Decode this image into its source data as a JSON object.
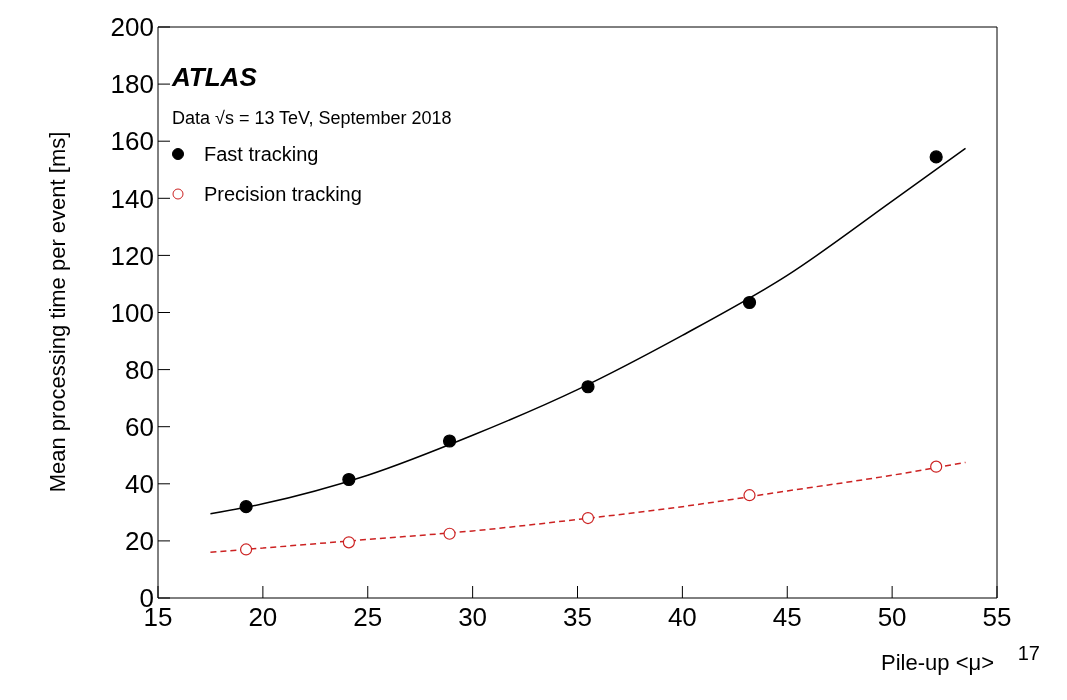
{
  "chart_data": {
    "type": "scatter",
    "xlabel": "Pile-up <μ>",
    "ylabel": "Mean processing time per event [ms]",
    "annotations": [
      "ATLAS",
      "Data √s = 13 TeV, September 2018",
      "17"
    ],
    "xlim": [
      15,
      55
    ],
    "xticks": [
      15,
      20,
      25,
      30,
      35,
      40,
      45,
      50,
      55
    ],
    "ylim": [
      0,
      200
    ],
    "yticks": [
      0,
      20,
      40,
      60,
      80,
      100,
      120,
      140,
      160,
      180,
      200
    ],
    "grid": false,
    "legend": "top left",
    "marker": "circle",
    "series": [
      {
        "name": "Fast tracking",
        "color": "#000000",
        "x": [
          19.2,
          24.1,
          28.9,
          35.5,
          43.2,
          52.1
        ],
        "values": [
          32,
          41.5,
          55,
          74,
          103.5,
          154.5
        ]
      },
      {
        "name": "Precision tracking",
        "color": "#cc2222",
        "x": [
          19.2,
          24.1,
          28.9,
          35.5,
          43.2,
          52.1
        ],
        "values": [
          17,
          19.5,
          22.5,
          28,
          36,
          46
        ]
      },
      {
        "type": "line",
        "color": "#000000",
        "line_style": "solid",
        "marker": "none",
        "x": [
          17.5,
          20,
          25,
          30,
          35,
          40,
          45,
          50,
          53.5
        ],
        "values": [
          29.5,
          33,
          43,
          57,
          73,
          92,
          113,
          139,
          157.5
        ]
      },
      {
        "type": "line",
        "color": "#cc2222",
        "line_style": "dashed",
        "marker": "none",
        "x": [
          17.5,
          20,
          25,
          30,
          35,
          40,
          45,
          50,
          53.5
        ],
        "values": [
          16,
          17.5,
          20.5,
          23.5,
          27.5,
          32,
          37.5,
          43,
          47.5
        ]
      }
    ]
  }
}
